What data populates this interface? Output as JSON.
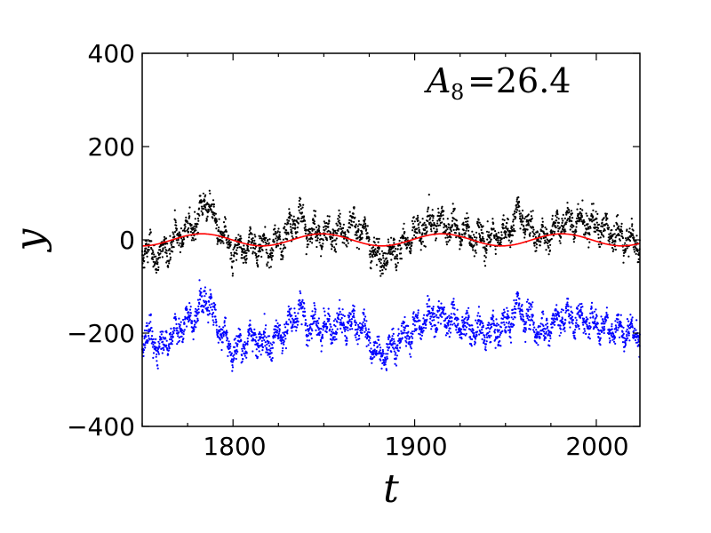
{
  "chart_data": {
    "type": "scatter",
    "xlabel": "t",
    "ylabel": "y",
    "xlim": [
      1750,
      2024
    ],
    "ylim": [
      -400,
      400
    ],
    "xticks": [
      1800,
      1900,
      2000
    ],
    "yticks": [
      -400,
      -200,
      0,
      200,
      400
    ],
    "xtick_labels": [
      "1800",
      "1900",
      "2000"
    ],
    "ytick_labels": [
      "−400",
      "−200",
      "0",
      "200",
      "400"
    ],
    "annotation": {
      "symbol": "A",
      "subscript": "8",
      "equals_value": "=26.4",
      "position": "top-right"
    },
    "grid": false,
    "series": [
      {
        "kind": "points",
        "color": "#000000",
        "baseline": 0,
        "x": [
          1750,
          1760,
          1770,
          1780,
          1785,
          1790,
          1800,
          1810,
          1820,
          1830,
          1837,
          1840,
          1850,
          1860,
          1870,
          1880,
          1890,
          1900,
          1910,
          1920,
          1930,
          1940,
          1950,
          1958,
          1960,
          1970,
          1980,
          1990,
          2000,
          2010,
          2020
        ],
        "y": [
          -20,
          -35,
          10,
          35,
          90,
          40,
          -30,
          -10,
          -20,
          15,
          60,
          20,
          10,
          20,
          30,
          -40,
          -20,
          10,
          40,
          30,
          10,
          0,
          15,
          60,
          40,
          0,
          35,
          40,
          30,
          10,
          -5
        ]
      },
      {
        "kind": "points",
        "color": "#0000ff",
        "baseline": -200,
        "x": [
          1750,
          1760,
          1770,
          1780,
          1785,
          1790,
          1800,
          1810,
          1820,
          1830,
          1837,
          1840,
          1850,
          1860,
          1870,
          1880,
          1890,
          1900,
          1910,
          1920,
          1930,
          1940,
          1950,
          1958,
          1960,
          1970,
          1980,
          1990,
          2000,
          2010,
          2020
        ],
        "y": [
          -200,
          -230,
          -190,
          -160,
          -120,
          -170,
          -240,
          -210,
          -220,
          -190,
          -150,
          -180,
          -190,
          -180,
          -180,
          -250,
          -220,
          -190,
          -160,
          -170,
          -190,
          -200,
          -185,
          -140,
          -160,
          -200,
          -165,
          -170,
          -180,
          -190,
          -200
        ]
      },
      {
        "kind": "line",
        "color": "#ff0000",
        "amplitude": 13,
        "period_years": 66,
        "phase_year": 1783
      }
    ]
  }
}
